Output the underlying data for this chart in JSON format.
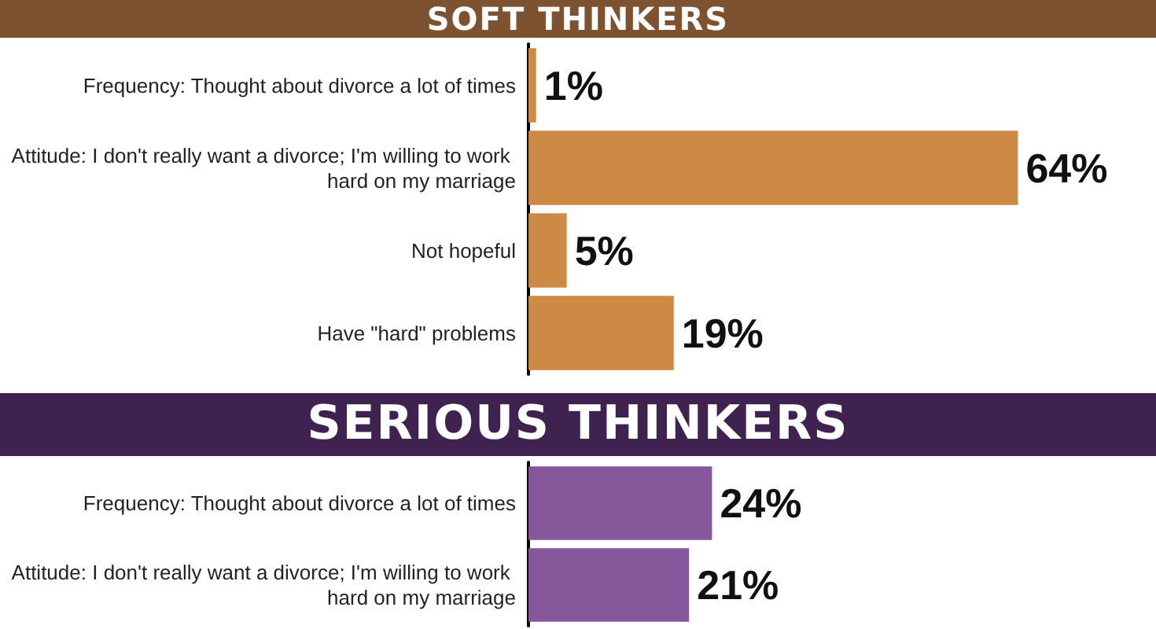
{
  "chart_data": [
    {
      "type": "bar",
      "orientation": "horizontal",
      "title": "SOFT THINKERS",
      "categories": [
        "Frequency: Thought about divorce a lot of times",
        "Attitude: I don't really want a divorce; I'm willing to work hard on my marriage",
        "Not hopeful",
        "Have \"hard\" problems"
      ],
      "values": [
        1,
        64,
        5,
        19
      ],
      "value_labels": [
        "1%",
        "64%",
        "5%",
        "19%"
      ],
      "color": "#cc8a45"
    },
    {
      "type": "bar",
      "orientation": "horizontal",
      "title": "SERIOUS THINKERS",
      "categories": [
        "Frequency: Thought about divorce a lot of times",
        "Attitude: I don't really want a divorce; I'm willing to work hard on my marriage"
      ],
      "values": [
        24,
        21
      ],
      "value_labels": [
        "24%",
        "21%"
      ],
      "color": "#85579a"
    }
  ]
}
